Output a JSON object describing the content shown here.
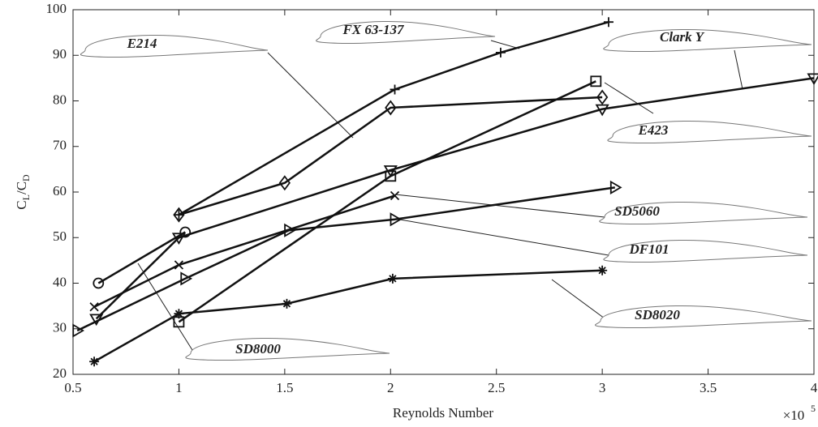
{
  "chart_data": {
    "type": "line",
    "ylabel": [
      "C",
      "L",
      "/C",
      "D"
    ],
    "xlabel": "Reynolds Number",
    "x_scale_base": "×10",
    "x_scale_exponent": "5",
    "xlim": [
      0.5,
      4
    ],
    "xticks": [
      0.5,
      1,
      1.5,
      2,
      2.5,
      3,
      3.5,
      4
    ],
    "ylim": [
      20,
      100
    ],
    "yticks": [
      20,
      30,
      40,
      50,
      60,
      70,
      80,
      90,
      100
    ],
    "grid": false,
    "series": [
      {
        "name": "E214",
        "color": "#111111",
        "marker": "diamond",
        "x": [
          1.0,
          1.5,
          2.0,
          3.0
        ],
        "values": [
          55,
          62,
          78.5,
          80.8
        ]
      },
      {
        "name": "FX 63-137",
        "color": "#111111",
        "marker": "plus",
        "x": [
          1.0,
          2.02,
          2.52,
          3.03
        ],
        "values": [
          55,
          82.5,
          90.6,
          97.3
        ]
      },
      {
        "name": "Clark Y",
        "color": "#111111",
        "marker": "triangle-down",
        "x": [
          0.61,
          1.0,
          2.0,
          3.0,
          4.0
        ],
        "values": [
          32.2,
          50,
          64.8,
          78.2,
          85
        ]
      },
      {
        "name": "E423",
        "color": "#111111",
        "marker": "square",
        "x": [
          1.0,
          2.0,
          2.97
        ],
        "values": [
          31.5,
          63.5,
          84.3
        ]
      },
      {
        "name": "SD5060",
        "color": "#111111",
        "marker": "x",
        "x": [
          0.6,
          1.0,
          2.02
        ],
        "values": [
          34.8,
          44,
          59.2
        ]
      },
      {
        "name": "DF101",
        "color": "#111111",
        "marker": "triangle-right",
        "x": [
          0.52,
          1.03,
          1.52,
          2.02,
          3.06
        ],
        "values": [
          29.6,
          41,
          51.6,
          54,
          61
        ]
      },
      {
        "name": "SD8020",
        "color": "#111111",
        "marker": "asterisk",
        "x": [
          0.6,
          1.0,
          1.51,
          2.01,
          3.0
        ],
        "values": [
          22.8,
          33.3,
          35.5,
          41,
          42.8
        ]
      },
      {
        "name": "SD8000",
        "color": "#111111",
        "marker": "circle",
        "x": [
          0.62,
          1.03
        ],
        "values": [
          40,
          51.2
        ]
      }
    ]
  }
}
